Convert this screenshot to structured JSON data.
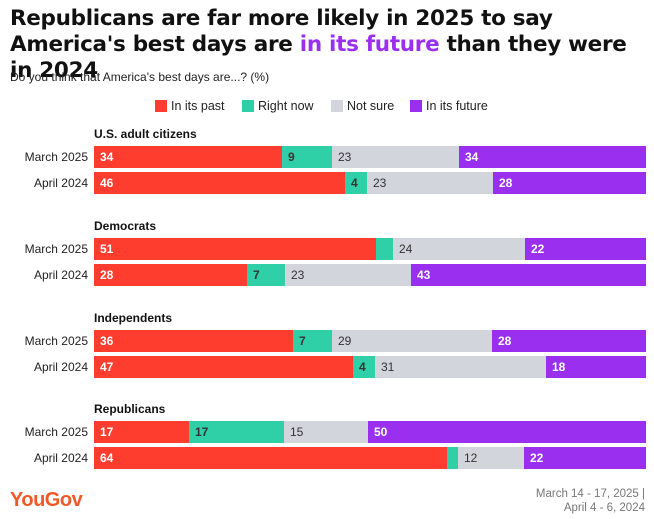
{
  "title": {
    "part1": "Republicans are far more likely in 2025 to say America's best days are ",
    "highlight": "in its future",
    "part2": " than they were in 2024"
  },
  "subtitle": "Do you think that America's best days are...? (%)",
  "colors": {
    "past": "#ff3d2e",
    "now": "#2fcfa7",
    "not_sure": "#d3d5dc",
    "future": "#9b2ff0",
    "title_highlight": "#9b2ff0",
    "brand": "#f05a28"
  },
  "chart_data": {
    "type": "bar",
    "stacked": true,
    "orientation": "horizontal",
    "unit": "%",
    "legend": [
      "In its past",
      "Right now",
      "Not sure",
      "In its future"
    ],
    "legend_placement": "top",
    "groups": [
      {
        "name": "U.S. adult citizens",
        "rows": [
          {
            "label": "March 2025",
            "values": [
              34,
              9,
              23,
              34
            ]
          },
          {
            "label": "April 2024",
            "values": [
              46,
              4,
              23,
              28
            ]
          }
        ]
      },
      {
        "name": "Democrats",
        "rows": [
          {
            "label": "March 2025",
            "values": [
              51,
              3,
              24,
              22
            ]
          },
          {
            "label": "April 2024",
            "values": [
              28,
              7,
              23,
              43
            ]
          }
        ]
      },
      {
        "name": "Independents",
        "rows": [
          {
            "label": "March 2025",
            "values": [
              36,
              7,
              29,
              28
            ]
          },
          {
            "label": "April 2024",
            "values": [
              47,
              4,
              31,
              18
            ]
          }
        ]
      },
      {
        "name": "Republicans",
        "rows": [
          {
            "label": "March 2025",
            "values": [
              17,
              17,
              15,
              50
            ]
          },
          {
            "label": "April 2024",
            "values": [
              64,
              2,
              12,
              22
            ]
          }
        ]
      }
    ]
  },
  "footer": {
    "logo": "YouGov",
    "dates_line1": "March 14 - 17, 2025 |",
    "dates_line2": "April 4 - 6, 2024"
  }
}
